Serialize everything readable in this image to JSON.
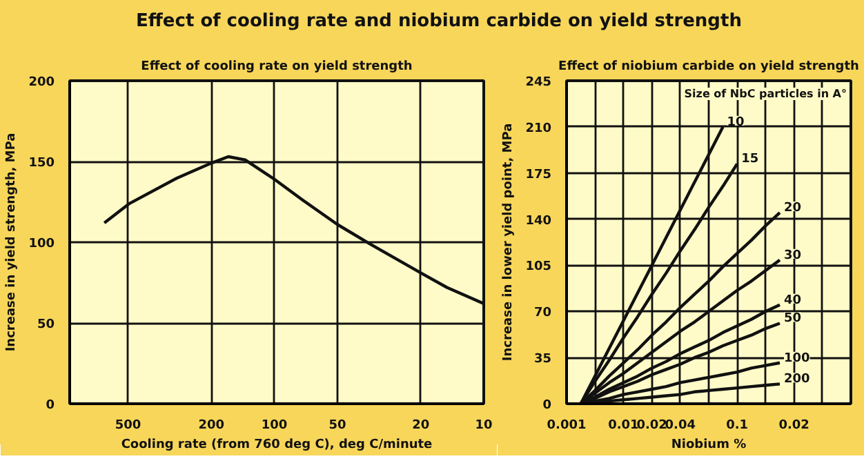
{
  "chart_data": [
    {
      "type": "line",
      "title": "Effect of cooling rate and niobium carbide on yield strength",
      "subtitle": "Effect of cooling rate on yield strength",
      "xlabel": "Cooling rate (from 760 deg C), deg C/minute",
      "ylabel": "Increase in yield strength, MPa",
      "log": "x",
      "xlim": [
        950,
        10
      ],
      "xticks": [
        500,
        200,
        100,
        50,
        20,
        10
      ],
      "ylim": [
        0,
        200
      ],
      "yticks": [
        0,
        50,
        100,
        150,
        200
      ],
      "grid": true,
      "line_style": "solid",
      "series": [
        {
          "color": "#111111",
          "x": [
            649,
            492,
            289,
            200,
            166,
            138,
            100,
            73,
            50,
            35,
            20,
            15,
            10
          ],
          "values": [
            112,
            124,
            140,
            149,
            153,
            151,
            139,
            126,
            111,
            99,
            81,
            72,
            62
          ]
        }
      ]
    },
    {
      "type": "line",
      "title": "Effect of niobium carbide on yield strength",
      "xlabel": "Niobium %",
      "ylabel": "Increase in lower yield point, MPa",
      "legend_title": "Size of NbC particles in A°",
      "categories": [
        "0.001",
        null,
        null,
        null,
        "0.01",
        null,
        "0.02",
        null,
        "0.04",
        null,
        null,
        null,
        "0.1",
        null,
        null,
        null,
        "0.02",
        null,
        null,
        null
      ],
      "ylim": [
        0,
        245
      ],
      "yticks": [
        0,
        35,
        70,
        105,
        140,
        175,
        210,
        245
      ],
      "grid": true,
      "line_style": "solid",
      "series": [
        {
          "name": "10",
          "color": "#111111",
          "values": [
            null,
            0,
            21,
            42,
            63,
            84,
            105,
            126,
            147,
            168,
            189,
            210,
            null,
            null,
            null,
            null,
            null,
            null,
            null,
            null
          ]
        },
        {
          "name": "15",
          "color": "#111111",
          "values": [
            null,
            0,
            17,
            33,
            50,
            66,
            83,
            99,
            116,
            132,
            149,
            165,
            182,
            null,
            null,
            null,
            null,
            null,
            null,
            null
          ]
        },
        {
          "name": "20",
          "color": "#111111",
          "values": [
            null,
            0,
            10,
            21,
            31,
            41,
            52,
            62,
            73,
            83,
            93,
            104,
            114,
            124,
            135,
            145,
            null,
            null,
            null,
            null
          ]
        },
        {
          "name": "30",
          "color": "#111111",
          "values": [
            null,
            0,
            8,
            16,
            23,
            31,
            39,
            47,
            55,
            62,
            70,
            78,
            86,
            93,
            101,
            109,
            null,
            null,
            null,
            null
          ]
        },
        {
          "name": "40",
          "color": "#111111",
          "values": [
            null,
            0,
            5,
            11,
            16,
            21,
            27,
            32,
            38,
            43,
            48,
            54,
            59,
            64,
            70,
            75,
            null,
            null,
            null,
            null
          ]
        },
        {
          "name": "50",
          "color": "#111111",
          "values": [
            null,
            0,
            4,
            9,
            13,
            17,
            22,
            26,
            30,
            35,
            39,
            44,
            48,
            52,
            57,
            61,
            null,
            null,
            null,
            null
          ]
        },
        {
          "name": "100",
          "color": "#111111",
          "values": [
            null,
            0,
            2,
            4,
            7,
            9,
            11,
            13,
            16,
            18,
            20,
            22,
            24,
            27,
            29,
            31,
            null,
            null,
            null,
            null
          ]
        },
        {
          "name": "200",
          "color": "#111111",
          "values": [
            null,
            0,
            1,
            2,
            3,
            4,
            5,
            6,
            7,
            9,
            10,
            11,
            12,
            13,
            14,
            15,
            null,
            null,
            null,
            null
          ]
        }
      ]
    }
  ]
}
